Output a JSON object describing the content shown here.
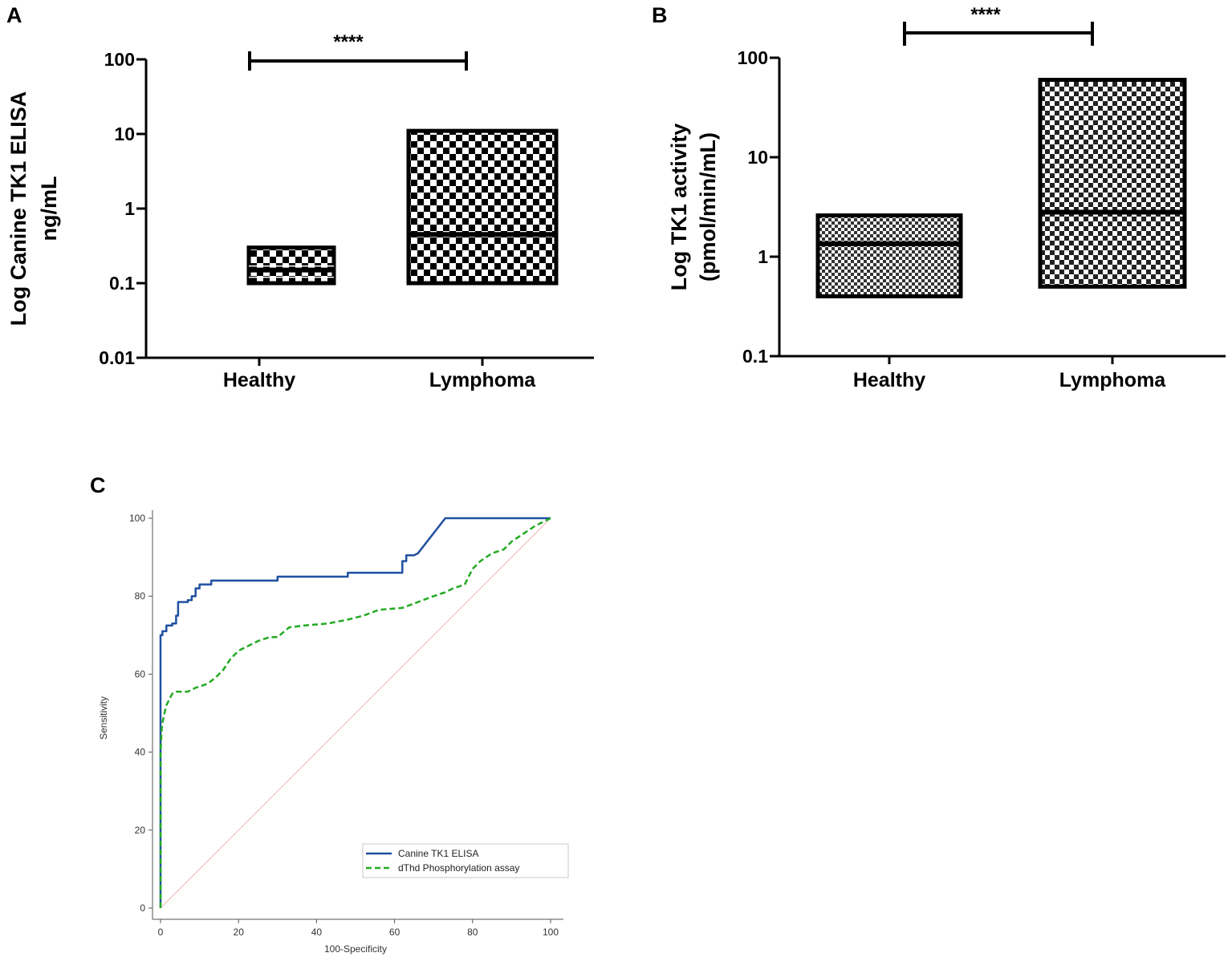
{
  "chart_data": [
    {
      "panel": "A",
      "type": "box",
      "ylabel_line1": "Log Canine TK1 ELISA",
      "ylabel_line2": "ng/mL",
      "yscale": "log",
      "ylim": [
        0.01,
        100
      ],
      "yticks": [
        {
          "value": 0.01,
          "label": "0.01"
        },
        {
          "value": 0.1,
          "label": "0.1"
        },
        {
          "value": 1,
          "label": "1"
        },
        {
          "value": 10,
          "label": "10"
        },
        {
          "value": 100,
          "label": "100"
        }
      ],
      "categories": [
        "Healthy",
        "Lymphoma"
      ],
      "boxes": [
        {
          "category": "Healthy",
          "min": 0.1,
          "q1": 0.12,
          "median": 0.15,
          "q3": 0.17,
          "max": 0.3
        },
        {
          "category": "Lymphoma",
          "min": 0.1,
          "median": 0.45,
          "max": 11
        }
      ],
      "significance": "****"
    },
    {
      "panel": "B",
      "type": "box",
      "ylabel_line1": "Log TK1 activity",
      "ylabel_line2": "(pmol/min/mL)",
      "yscale": "log",
      "ylim": [
        0.1,
        100
      ],
      "yticks": [
        {
          "value": 0.1,
          "label": "0.1"
        },
        {
          "value": 1,
          "label": "1"
        },
        {
          "value": 10,
          "label": "10"
        },
        {
          "value": 100,
          "label": "100"
        }
      ],
      "categories": [
        "Healthy",
        "Lymphoma"
      ],
      "boxes": [
        {
          "category": "Healthy",
          "min": 0.4,
          "median": 1.35,
          "max": 2.6
        },
        {
          "category": "Lymphoma",
          "min": 0.5,
          "median": 2.8,
          "max": 60
        }
      ],
      "significance": "****"
    },
    {
      "panel": "C",
      "type": "line",
      "title": "",
      "xlabel": "100-Specificity",
      "ylabel": "Sensitivity",
      "xlim": [
        0,
        100
      ],
      "ylim": [
        0,
        100
      ],
      "xticks": [
        "0",
        "20",
        "40",
        "60",
        "80",
        "100"
      ],
      "yticks": [
        "0",
        "20",
        "40",
        "60",
        "80",
        "100"
      ],
      "reference_line": {
        "x": [
          0,
          100
        ],
        "y": [
          0,
          100
        ],
        "color": "#f0b8b8"
      },
      "series": [
        {
          "name": "Canine TK1 ELISA",
          "color": "#2050a0",
          "dash": "solid",
          "x": [
            0,
            0,
            0.5,
            0.5,
            1.5,
            1.5,
            3,
            3,
            4,
            4,
            4.5,
            4.5,
            7,
            7,
            8,
            8,
            9,
            9,
            10,
            10,
            13,
            13,
            30,
            30,
            48,
            48,
            62,
            62,
            63,
            63,
            65,
            66,
            73,
            100
          ],
          "y": [
            0,
            70,
            70,
            71,
            71,
            72.5,
            72.5,
            73,
            73,
            75,
            75,
            78.5,
            78.5,
            79,
            79,
            80,
            80,
            82,
            82,
            83,
            83,
            84,
            84,
            85,
            85,
            86,
            86,
            89,
            89,
            90.5,
            90.5,
            91,
            100,
            100
          ]
        },
        {
          "name": "dThd Phosphorylation assay",
          "color": "#22aa22",
          "dash": "dashed",
          "x": [
            0,
            0,
            0.3,
            0.6,
            1,
            1.5,
            2,
            2.5,
            3,
            4,
            5,
            7,
            9,
            12,
            14,
            16,
            18,
            20,
            22,
            25,
            28,
            30,
            33,
            37,
            43,
            48,
            52,
            56,
            62,
            66,
            70,
            73,
            75,
            78,
            79,
            80,
            82,
            85,
            88,
            90,
            93,
            96,
            100
          ],
          "y": [
            0,
            40,
            46,
            48,
            50,
            52,
            53,
            54,
            55,
            55.5,
            55.5,
            55.5,
            56.5,
            57.5,
            59,
            61,
            64,
            66,
            67,
            68.5,
            69.5,
            69.5,
            72,
            72.5,
            73,
            74,
            75,
            76.5,
            77,
            78.5,
            80,
            81,
            82,
            83,
            85,
            87,
            89,
            91,
            92,
            94,
            96,
            98,
            100
          ]
        }
      ],
      "legend_position": "bottom-right"
    }
  ],
  "panel_c_legend": [
    {
      "label": "Canine TK1 ELISA"
    },
    {
      "label": "dThd Phosphorylation assay"
    }
  ]
}
